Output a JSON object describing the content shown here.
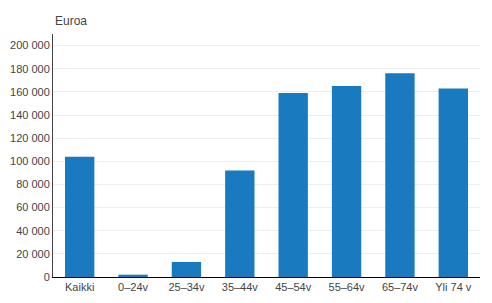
{
  "chart_data": {
    "type": "bar",
    "ylabel": "Euroa",
    "categories": [
      "Kaikki",
      "0–24v",
      "25–34v",
      "35–44v",
      "45–54v",
      "55–64v",
      "65–74v",
      "Yli 74 v"
    ],
    "values": [
      104000,
      2000,
      13000,
      92000,
      159000,
      165000,
      176000,
      163000
    ],
    "color": "#1a7abf",
    "ylim": [
      0,
      210000
    ],
    "yticks": [
      0,
      {
        "value": 20000,
        "label": "20 000"
      },
      {
        "value": 40000,
        "label": "40 000"
      },
      {
        "value": 60000,
        "label": "60 000"
      },
      {
        "value": 80000,
        "label": "80 000"
      },
      {
        "value": 100000,
        "label": "100 000"
      },
      {
        "value": 120000,
        "label": "120 000"
      },
      {
        "value": 140000,
        "label": "140 000"
      },
      {
        "value": 160000,
        "label": "160 000"
      },
      {
        "value": 180000,
        "label": "180 000"
      },
      {
        "value": 200000,
        "label": "200 000"
      }
    ],
    "grid": true
  }
}
